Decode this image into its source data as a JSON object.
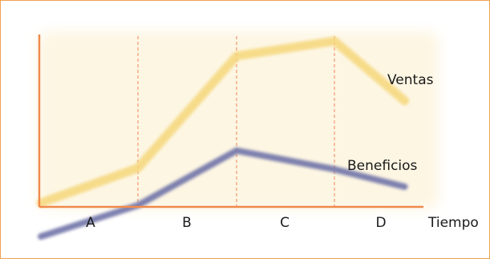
{
  "chart_data": {
    "type": "line",
    "title": "",
    "xlabel": "Tiempo",
    "ylabel": "",
    "categories": [
      "A",
      "B",
      "C",
      "D"
    ],
    "x": [
      0,
      1,
      2,
      3,
      3.85
    ],
    "xlim": [
      0,
      4
    ],
    "ylim": [
      -0.3,
      1.6
    ],
    "grid": false,
    "dividers": [
      1,
      2,
      3
    ],
    "series": [
      {
        "name": "Ventas",
        "x": [
          0,
          1,
          2,
          3,
          3.85
        ],
        "values": [
          0.0,
          0.28,
          1.18,
          1.3,
          0.82
        ],
        "color": "#f5d77a"
      },
      {
        "name": "Beneficios",
        "x": [
          0,
          1,
          2,
          3,
          3.85
        ],
        "values": [
          -0.27,
          -0.02,
          0.42,
          0.27,
          0.13
        ],
        "color": "#6f73a8"
      }
    ],
    "colors": {
      "background": "#fdf6e3",
      "axis": "#f08a4b",
      "divider": "#f4a582",
      "frame": "#f0a14f"
    }
  }
}
